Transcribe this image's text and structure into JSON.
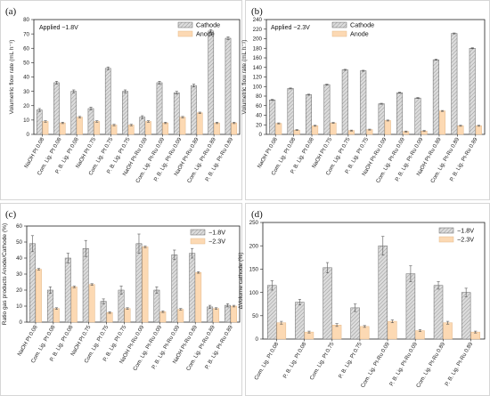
{
  "chart_data": [
    {
      "type": "bar",
      "panel": "(a)",
      "annotation": "Applied −1.8V",
      "ylabel": "Volumetric flow rate (mL h⁻¹)",
      "ylim": [
        0,
        80
      ],
      "yticks": [
        0,
        10,
        20,
        30,
        40,
        50,
        60,
        70,
        80
      ],
      "legend_position": "top-right",
      "categories": [
        "NaOH Pt 0.08",
        "Com. Lig. Pt 0.08",
        "P. B. Lig. Pt 0.08",
        "NaOH Pt 0.75",
        "Com. Lig. Pt 0.75",
        "P. B. Lig. Pt 0.75",
        "NaOH Pt-Ru 0.09",
        "Com. Lig. Pt-Ru 0.09",
        "P. B. Lig. Pt-Ru 0.09",
        "NaOH Pt-Ru 0.89",
        "Com. Lig. Pt-Ru 0.89",
        "P. B. Lig. Pt-Ru 0.89"
      ],
      "series": [
        {
          "name": "Cathode",
          "color": "#d9d9d9",
          "values": [
            17,
            36,
            30,
            18,
            46,
            30,
            12,
            36,
            29,
            34,
            72,
            67
          ],
          "errors": [
            1,
            1,
            1,
            1,
            1,
            1,
            1,
            1,
            1,
            1,
            1,
            1
          ]
        },
        {
          "name": "Anode",
          "color": "#fcd9b3",
          "values": [
            9,
            8,
            12,
            9,
            6.5,
            6.5,
            9,
            8,
            12,
            15,
            8,
            8
          ],
          "errors": [
            0.5,
            0.5,
            0.5,
            0.5,
            0.5,
            0.5,
            0.5,
            0.5,
            0.5,
            0.5,
            0.5,
            0.5
          ]
        }
      ]
    },
    {
      "type": "bar",
      "panel": "(b)",
      "annotation": "Applied −2.3V",
      "ylabel": "Volumetric flow rate (mL h⁻¹)",
      "ylim": [
        0,
        240
      ],
      "yticks": [
        0,
        20,
        40,
        60,
        80,
        100,
        120,
        140,
        160,
        180,
        200,
        220,
        240
      ],
      "legend_position": "top-right",
      "categories": [
        "NaOH Pt 0.08",
        "Com. Lig. Pt 0.08",
        "P. B. Lig. Pt 0.08",
        "NaOH Pt 0.75",
        "Com. Lig. Pt 0.75",
        "P. B. Lig. Pt 0.75",
        "NaOH Pt-Ru 0.09",
        "Com. Lig. Pt-Ru 0.09",
        "P. B. Lig. Pt-Ru 0.09",
        "NaOH Pt-Ru 0.89",
        "Com. Lig. Pt-Ru 0.89",
        "P. B. Lig. Pt-Ru 0.89"
      ],
      "series": [
        {
          "name": "Cathode",
          "color": "#d9d9d9",
          "values": [
            72,
            96,
            83,
            104,
            135,
            133,
            64,
            87,
            76,
            156,
            211,
            180
          ],
          "errors": [
            1,
            1,
            1,
            1,
            1,
            1,
            1,
            1,
            1,
            1,
            1,
            1
          ]
        },
        {
          "name": "Anode",
          "color": "#fcd9b3",
          "values": [
            23,
            9,
            18,
            24,
            8,
            10,
            29,
            6,
            7,
            49,
            18,
            18
          ],
          "errors": [
            1,
            1,
            1,
            1,
            1,
            1,
            1,
            1,
            1,
            1,
            1,
            1
          ]
        }
      ]
    },
    {
      "type": "bar",
      "panel": "(c)",
      "ylabel": "Ratio gas products Anode/Cathode (%)",
      "ylim": [
        0,
        60
      ],
      "yticks": [
        0,
        10,
        20,
        30,
        40,
        50,
        60
      ],
      "legend_position": "top-right",
      "categories": [
        "NaOH Pt 0.08",
        "Com. Lig. Pt 0.08",
        "P. B. Lig. Pt 0.08",
        "NaOH Pt 0.75",
        "Com. Lig. Pt 0.75",
        "P. B. Lig. Pt 0.75",
        "NaOH Pt-Ru 0.09",
        "Com. Lig. Pt-Ru 0.09",
        "P. B. Lig. Pt-Ru 0.09",
        "NaOH Pt-Ru 0.89",
        "Com. Lig. Pt-Ru 0.89",
        "P. B. Lig. Pt-Ru 0.89"
      ],
      "series": [
        {
          "name": "−1.8V",
          "color": "#d9d9d9",
          "values": [
            49,
            20,
            40,
            46,
            13,
            20,
            49,
            20,
            42,
            43,
            9.5,
            10.5
          ],
          "errors": [
            5,
            2,
            3,
            5,
            1.5,
            2.5,
            6,
            2,
            3,
            3,
            1,
            1
          ]
        },
        {
          "name": "−2.3V",
          "color": "#fcd9b3",
          "values": [
            33,
            8.5,
            22,
            23.5,
            6,
            8.5,
            47,
            6.5,
            8,
            31,
            8.5,
            10
          ],
          "errors": [
            0.5,
            0.5,
            0.5,
            0.5,
            0.5,
            0.5,
            0.5,
            0.5,
            0.5,
            0.5,
            0.5,
            0.5
          ]
        }
      ]
    },
    {
      "type": "bar",
      "panel": "(d)",
      "ylabel": "ΔVolume cathode (%)",
      "ylim": [
        0,
        250
      ],
      "yticks": [
        0,
        50,
        100,
        150,
        200,
        250
      ],
      "legend_position": "top-right",
      "categories": [
        "Com. Lig. Pt 0.08",
        "P. B. Lig. Pt 0.08",
        "Com. Lig. Pt 0.75",
        "P. B. Lig. Pt 0.75",
        "Com. Lig. Pt-Ru 0.09",
        "P. B. Lig. Pt-Ru 0.09",
        "Com. Lig. Pt-Ru 0.89",
        "P. B. Lig. Pt-Ru 0.89"
      ],
      "series": [
        {
          "name": "−1.8V",
          "color": "#d9d9d9",
          "values": [
            115,
            79,
            153,
            67,
            200,
            140,
            115,
            100
          ],
          "errors": [
            10,
            6,
            11,
            8,
            20,
            17,
            8,
            9
          ]
        },
        {
          "name": "−2.3V",
          "color": "#fcd9b3",
          "values": [
            35,
            15,
            30,
            27,
            38,
            18,
            35,
            15
          ],
          "errors": [
            3,
            2,
            3,
            2,
            3,
            2,
            3,
            2
          ]
        }
      ]
    }
  ]
}
